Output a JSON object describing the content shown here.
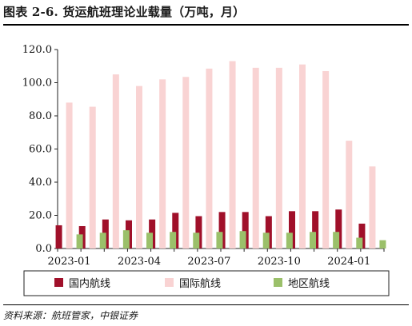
{
  "title": "图表 2-6. 货运航班理论业载量（万吨，月）",
  "source": "资料来源：航班管家，中银证券",
  "colors": {
    "domestic": "#a0102a",
    "international": "#f9d3d3",
    "regional": "#9bc06a"
  },
  "chart_data": {
    "type": "bar",
    "title": "图表 2-6. 货运航班理论业载量（万吨，月）",
    "categories": [
      "2023-01",
      "2023-02",
      "2023-03",
      "2023-04",
      "2023-05",
      "2023-06",
      "2023-07",
      "2023-08",
      "2023-09",
      "2023-10",
      "2023-11",
      "2023-12",
      "2024-01",
      "2024-02"
    ],
    "x_tick_labels": [
      "2023-01",
      "2023-04",
      "2023-07",
      "2023-10",
      "2024-01"
    ],
    "y_tick_labels": [
      "0.0",
      "20.0",
      "40.0",
      "60.0",
      "80.0",
      "100.0",
      "120.0"
    ],
    "ylim": [
      0,
      120
    ],
    "grid": false,
    "legend_position": "bottom",
    "series": [
      {
        "name": "国内航线",
        "values": [
          14.0,
          13.5,
          17.5,
          17.0,
          17.5,
          21.5,
          19.5,
          22.0,
          22.0,
          19.5,
          22.5,
          22.5,
          23.5,
          15.0
        ]
      },
      {
        "name": "国际航线",
        "values": [
          88.0,
          85.5,
          105.0,
          98.0,
          102.0,
          103.5,
          108.5,
          113.0,
          109.0,
          109.0,
          111.0,
          107.0,
          65.0,
          49.5
        ]
      },
      {
        "name": "地区航线",
        "values": [
          8.5,
          9.5,
          11.0,
          9.5,
          10.0,
          9.5,
          10.0,
          10.5,
          9.5,
          9.5,
          10.0,
          10.0,
          6.5,
          5.0
        ]
      }
    ]
  }
}
